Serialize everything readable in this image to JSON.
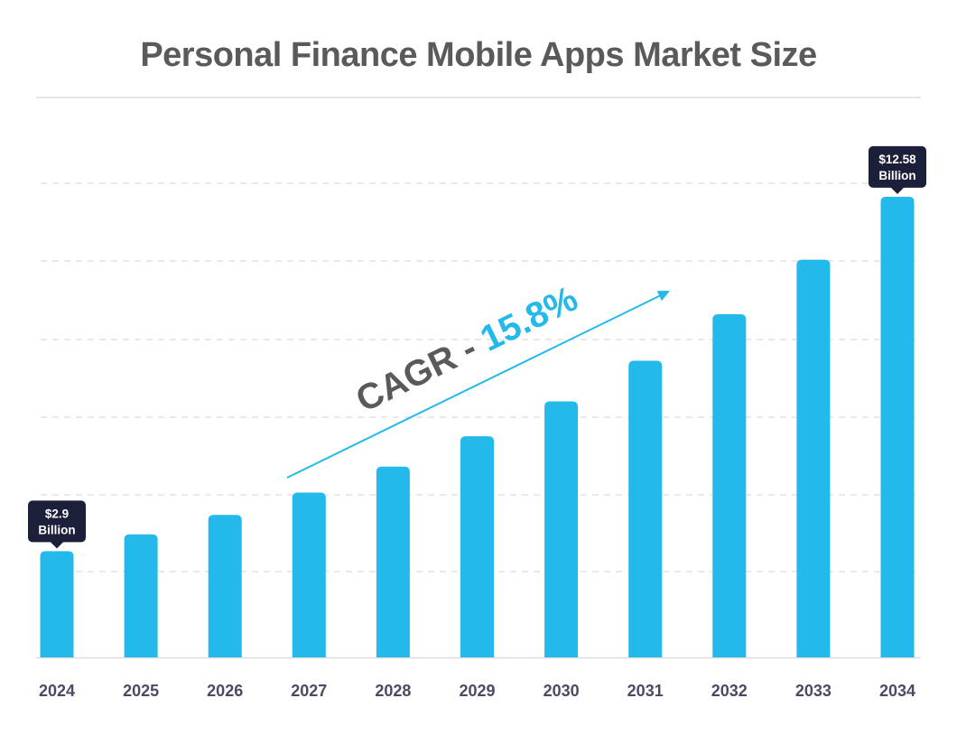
{
  "title": "Personal Finance Mobile Apps Market Size",
  "colors": {
    "bar": "#23b9ea",
    "tag": "#1c1f3a",
    "arrow": "#23b9ea",
    "cagr_text": "#5a5a5a",
    "cagr_value": "#23b9ea"
  },
  "cagr": {
    "label": "CAGR - ",
    "value": "15.8%"
  },
  "chart_data": {
    "type": "bar",
    "title": "Personal Finance Mobile Apps Market Size",
    "categories": [
      "2024",
      "2025",
      "2026",
      "2027",
      "2028",
      "2029",
      "2030",
      "2031",
      "2032",
      "2033",
      "2034"
    ],
    "values": [
      2.9,
      3.36,
      3.89,
      4.5,
      5.21,
      6.04,
      6.99,
      8.1,
      9.37,
      10.86,
      12.58
    ],
    "unit": "Billion",
    "ylim": [
      0,
      14.5
    ],
    "grid": true,
    "yaxis_labels": false,
    "annotations": [
      {
        "category": "2024",
        "line1": "$2.9",
        "line2": "Billion"
      },
      {
        "category": "2034",
        "line1": "$12.58",
        "line2": "Billion"
      }
    ]
  }
}
